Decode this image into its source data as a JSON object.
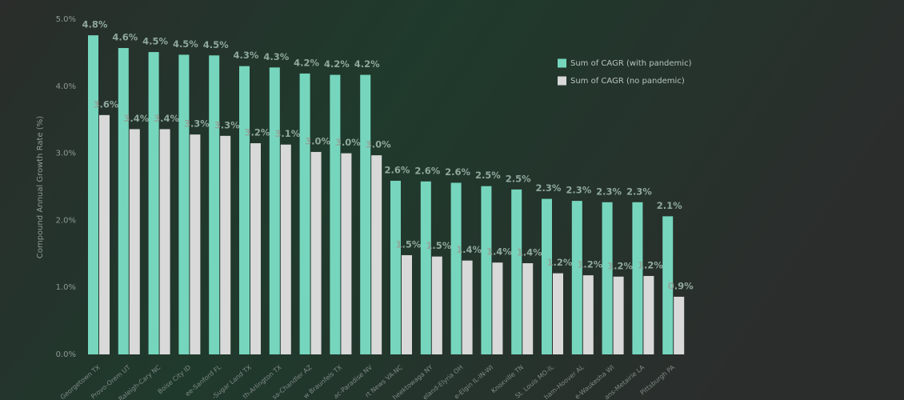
{
  "chart_data": {
    "type": "bar",
    "y_label": "Compound Annual Growth Rate (%)",
    "categories": [
      "Georgetown TX",
      "Provo-Orem UT",
      "Raleigh-Cary NC",
      "Boise City ID",
      "ee-Sanford FL",
      "-Sugar Land TX",
      "th-Arlington TX",
      "sa-Chandler AZ",
      "w Braunfels TX",
      "ac-Paradise NV",
      "rt News VA-NC",
      "heektowaga NY",
      "eland-Elyria OH",
      "e-Elgin IL-IN-WI",
      "Knoxville TN",
      "St. Louis MO-IL",
      "ham-Hoover AL",
      "e-Waukesha WI",
      "ans-Metairie LA",
      "Pittsburgh PA"
    ],
    "series": [
      {
        "name": "Sum of CAGR (with pandemic)",
        "color": "#76d6bd",
        "values": [
          4.76,
          4.57,
          4.51,
          4.47,
          4.46,
          4.3,
          4.28,
          4.19,
          4.17,
          4.17,
          2.59,
          2.58,
          2.56,
          2.51,
          2.46,
          2.32,
          2.29,
          2.27,
          2.27,
          2.06
        ],
        "value_labels": [
          "4.8%",
          "4.6%",
          "4.5%",
          "4.5%",
          "4.5%",
          "4.3%",
          "4.3%",
          "4.2%",
          "4.2%",
          "4.2%",
          "2.6%",
          "2.6%",
          "2.6%",
          "2.5%",
          "2.5%",
          "2.3%",
          "2.3%",
          "2.3%",
          "2.3%",
          "2.1%"
        ]
      },
      {
        "name": "Sum of CAGR (no pandemic)",
        "color": "#d9d9d9",
        "values": [
          3.57,
          3.36,
          3.36,
          3.28,
          3.26,
          3.15,
          3.13,
          3.02,
          3.0,
          2.97,
          1.48,
          1.46,
          1.4,
          1.37,
          1.36,
          1.21,
          1.18,
          1.16,
          1.17,
          0.86
        ],
        "value_labels": [
          "3.6%",
          "3.4%",
          "3.4%",
          "3.3%",
          "3.3%",
          "3.2%",
          "3.1%",
          "3.0%",
          "3.0%",
          "3.0%",
          "1.5%",
          "1.5%",
          "1.4%",
          "1.4%",
          "1.4%",
          "1.2%",
          "1.2%",
          "1.2%",
          "1.2%",
          "0.9%"
        ]
      }
    ],
    "ylim": [
      0,
      5
    ],
    "yticks": [
      {
        "value": 0,
        "label": "0.0%"
      },
      {
        "value": 1,
        "label": "1.0%"
      },
      {
        "value": 2,
        "label": "2.0%"
      },
      {
        "value": 3,
        "label": "3.0%"
      },
      {
        "value": 4,
        "label": "4.0%"
      },
      {
        "value": 5,
        "label": "5.0%"
      }
    ],
    "legend": "top-right"
  }
}
